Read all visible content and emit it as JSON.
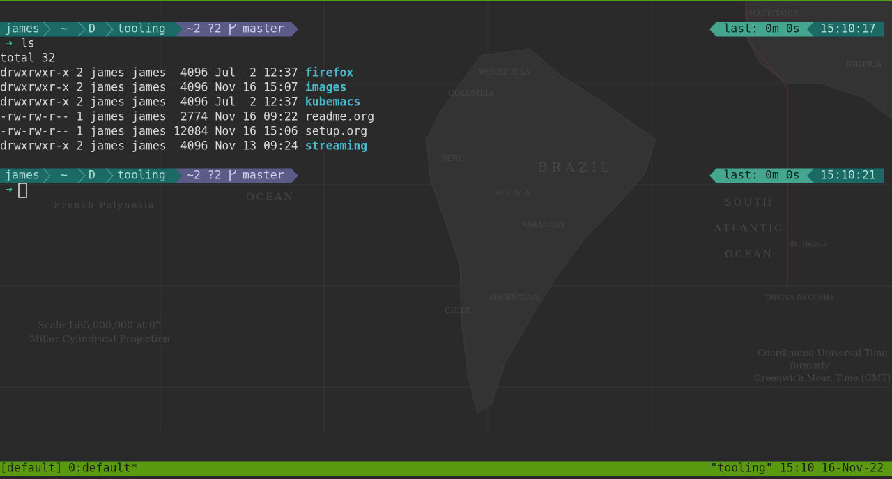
{
  "prompts": [
    {
      "user": "james",
      "segments": [
        "~",
        "D",
        "tooling"
      ],
      "git_status": "~2 ?2",
      "branch": "master",
      "last": "last: 0m 0s",
      "time": "15:10:17",
      "symbol": "➜",
      "command": "ls"
    },
    {
      "user": "james",
      "segments": [
        "~",
        "D",
        "tooling"
      ],
      "git_status": "~2 ?2",
      "branch": "master",
      "last": "last: 0m 0s",
      "time": "15:10:21",
      "symbol": "➜"
    }
  ],
  "listing": {
    "total": "total 32",
    "entries": [
      {
        "perms": "drwxrwxr-x",
        "links": 2,
        "user": "james",
        "group": "james",
        "size": 4096,
        "date": "Jul  2 12:37",
        "name": "firefox",
        "is_dir": true
      },
      {
        "perms": "drwxrwxr-x",
        "links": 2,
        "user": "james",
        "group": "james",
        "size": 4096,
        "date": "Nov 16 15:07",
        "name": "images",
        "is_dir": true
      },
      {
        "perms": "drwxrwxr-x",
        "links": 2,
        "user": "james",
        "group": "james",
        "size": 4096,
        "date": "Jul  2 12:37",
        "name": "kubemacs",
        "is_dir": true
      },
      {
        "perms": "-rw-rw-r--",
        "links": 1,
        "user": "james",
        "group": "james",
        "size": 2774,
        "date": "Nov 16 09:22",
        "name": "readme.org",
        "is_dir": false
      },
      {
        "perms": "-rw-rw-r--",
        "links": 1,
        "user": "james",
        "group": "james",
        "size": 12084,
        "date": "Nov 16 15:06",
        "name": "setup.org",
        "is_dir": false
      },
      {
        "perms": "drwxrwxr-x",
        "links": 2,
        "user": "james",
        "group": "james",
        "size": 4096,
        "date": "Nov 13 09:24",
        "name": "streaming",
        "is_dir": true
      }
    ]
  },
  "status_bar": {
    "session": "[default]",
    "window": "0:default*",
    "pane_title": "\"tooling\"",
    "time": "15:10",
    "date": "16-Nov-22"
  },
  "wallpaper": {
    "labels": [
      "BRAZIL",
      "COLOMBIA",
      "VENEZUELA",
      "PERU",
      "BOLIVIA",
      "PARAGUAY",
      "CHILE",
      "ARGENTINA",
      "French Polynesia",
      "OCEAN",
      "SOUTH",
      "ATLANTIC",
      "OCEAN",
      "Scale 1:85,000,000 at 0°",
      "Miller Cylindrical Projection",
      "Coordinated Universal Time",
      "formerly",
      "Greenwich Mean Time (GMT)",
      "NIGERIA",
      "MAURITANIA",
      "St. Helena",
      "TRISTAN DA CUNHA"
    ]
  }
}
